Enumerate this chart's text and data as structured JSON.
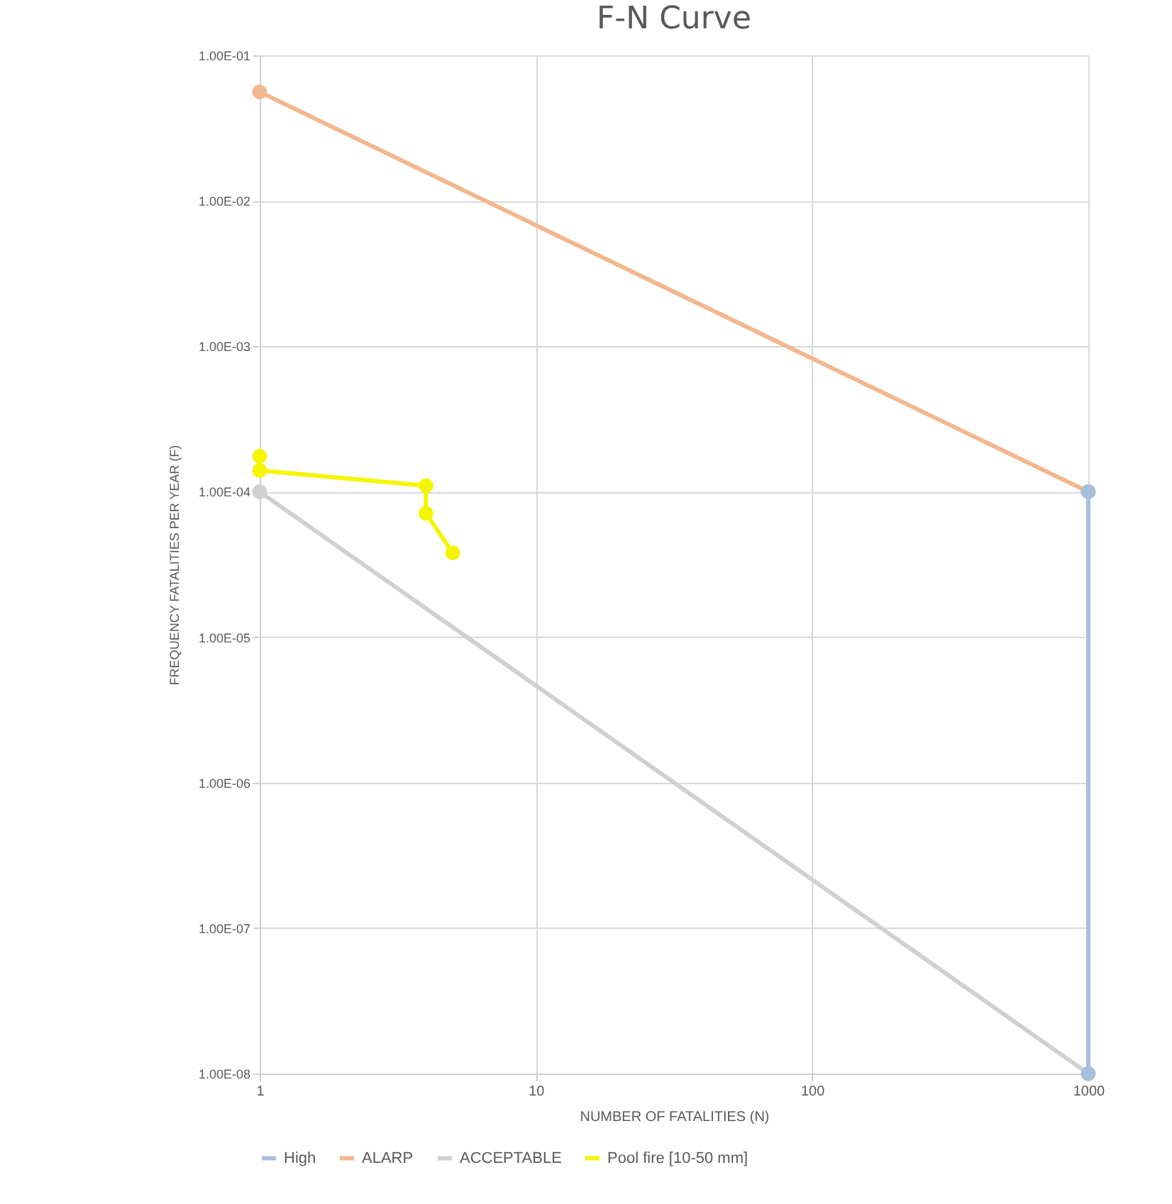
{
  "chart_data": {
    "type": "line",
    "title": "F-N Curve",
    "xlabel": "NUMBER OF FATALITIES  (N)",
    "ylabel": "FREQUENCY FATALITIES PER YEAR (F)",
    "log": "xy",
    "grid": true,
    "legend": "bottom",
    "marker": "circle",
    "line_style": "solid",
    "xlim": [
      1,
      1000
    ],
    "xticks": [
      1,
      10,
      100,
      1000
    ],
    "ylim": [
      1e-08,
      0.1
    ],
    "yticks": [
      {
        "value": 1e-08,
        "label": "1.00E-08"
      },
      {
        "value": 1e-07,
        "label": "1.00E-07"
      },
      {
        "value": 1e-06,
        "label": "1.00E-06"
      },
      {
        "value": 1e-05,
        "label": "1.00E-05"
      },
      {
        "value": 0.0001,
        "label": "1.00E-04"
      },
      {
        "value": 0.001,
        "label": "1.00E-03"
      },
      {
        "value": 0.01,
        "label": "1.00E-02"
      },
      {
        "value": 0.1,
        "label": "1.00E-01"
      }
    ],
    "series": [
      {
        "name": "High",
        "color": "#a6bfdc",
        "x": [
          1000,
          1000
        ],
        "values": [
          0.0001,
          1e-08
        ]
      },
      {
        "name": "ALARP",
        "color": "#f2b78f",
        "x": [
          1,
          1000
        ],
        "values": [
          0.056,
          0.0001
        ]
      },
      {
        "name": "ACCEPTABLE",
        "color": "#d0d0d0",
        "x": [
          1,
          1000
        ],
        "values": [
          0.0001,
          1e-08
        ]
      },
      {
        "name": "Pool fire [10-50 mm]",
        "color": "#f5f500",
        "x": [
          1,
          1,
          4,
          4,
          5
        ],
        "values": [
          0.000175,
          0.00014,
          0.00011,
          7.1e-05,
          3.8e-05
        ]
      }
    ]
  }
}
